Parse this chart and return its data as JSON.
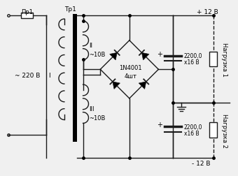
{
  "background_color": "#f0f0f0",
  "labels": {
    "pr1": "Пр1",
    "tr1": "Тр1",
    "voltage_ac": "~ 220 В",
    "winding_I": "I",
    "winding_II": "II",
    "winding_III": "III",
    "v_II": "~10В",
    "v_III": "~10В",
    "diode_name": "1N4001",
    "diode_count": "4шт",
    "cap1_val": "2200,0",
    "cap1_v": "x16 В",
    "cap2_val": "2200,0",
    "cap2_v": "x16 В",
    "v_plus": "+ 12 В",
    "v_minus": "- 12 В",
    "load1": "Нагрузка 1",
    "load2": "Нагрузка 2",
    "plus1": "+",
    "plus2": "+"
  },
  "line_color": "#1a1a1a",
  "line_width": 1.0,
  "fig_width": 3.4,
  "fig_height": 2.53,
  "dpi": 100
}
